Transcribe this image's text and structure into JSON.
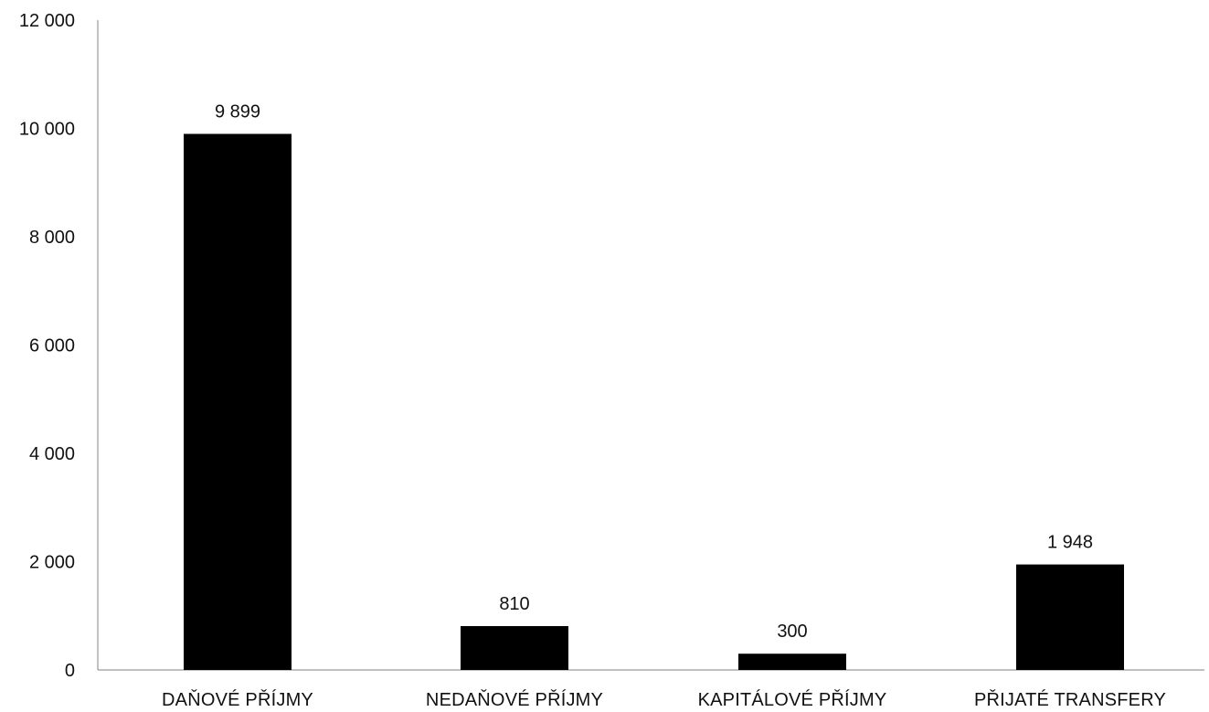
{
  "chart_data": {
    "type": "bar",
    "categories": [
      "DAŇOVÉ PŘÍJMY",
      "NEDAŇOVÉ PŘÍJMY",
      "KAPITÁLOVÉ PŘÍJMY",
      "PŘIJATÉ TRANSFERY"
    ],
    "values": [
      9899,
      810,
      300,
      1948
    ],
    "value_labels": [
      "9 899",
      "810",
      "300",
      "1 948"
    ],
    "ylim": [
      0,
      12000
    ],
    "yticks": [
      0,
      2000,
      4000,
      6000,
      8000,
      10000,
      12000
    ],
    "ytick_labels": [
      "0",
      "2 000",
      "4 000",
      "6 000",
      "8 000",
      "10 000",
      "12 000"
    ],
    "title": "",
    "xlabel": "",
    "ylabel": "",
    "grid": false,
    "legend": "none",
    "bar_color": "#000000"
  }
}
